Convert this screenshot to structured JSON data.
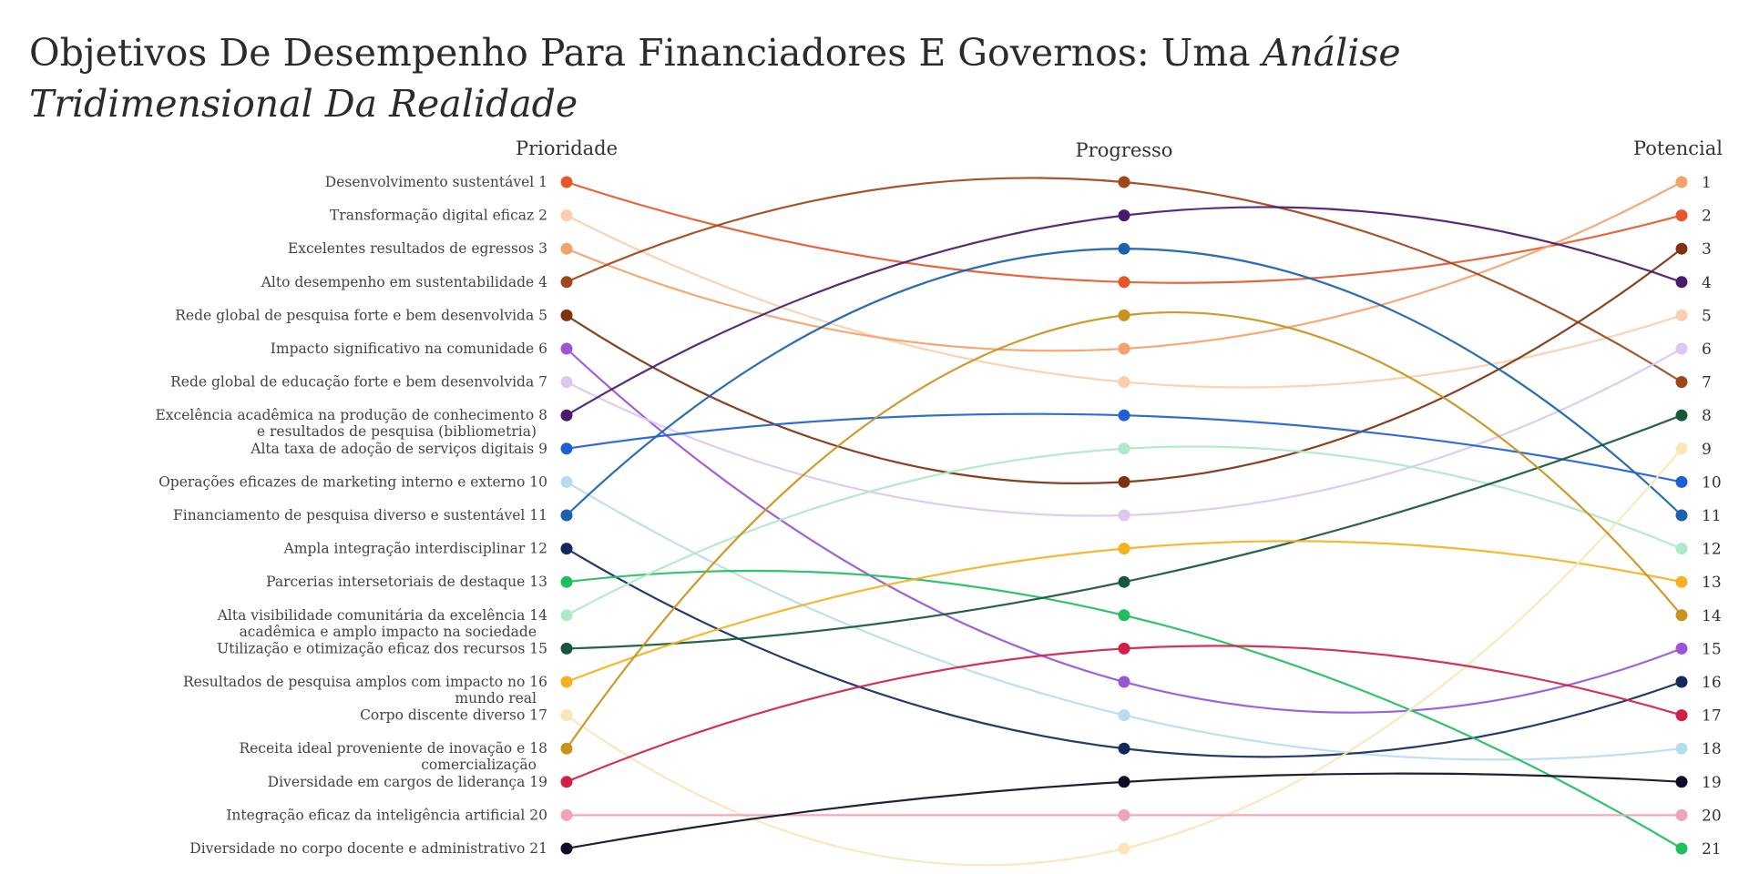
{
  "title_main": "Objetivos De Desempenho Para Financiadores E Governos: Uma ",
  "title_italic": "Análise Tridimensional Da Realidade",
  "chart_data": {
    "type": "line",
    "chart_style": "bump (rank) chart",
    "stages": [
      "Prioridade",
      "Progresso",
      "Potencial"
    ],
    "rank_range": [
      1,
      21
    ],
    "series": [
      {
        "name": "Desenvolvimento sustentável",
        "values": [
          1,
          4,
          2
        ],
        "color": "#e8572a"
      },
      {
        "name": "Transformação digital eficaz",
        "values": [
          2,
          7,
          5
        ],
        "color": "#f9cfae"
      },
      {
        "name": "Excelentes resultados de egressos",
        "values": [
          3,
          6,
          1
        ],
        "color": "#f4a26b"
      },
      {
        "name": "Alto desempenho em sustentabilidade",
        "values": [
          4,
          1,
          7
        ],
        "color": "#a0471a"
      },
      {
        "name": "Rede global de pesquisa forte e bem desenvolvida",
        "values": [
          5,
          10,
          3
        ],
        "color": "#7e3210"
      },
      {
        "name": "Impacto significativo na comunidade",
        "values": [
          6,
          16,
          15
        ],
        "color": "#9a55d4"
      },
      {
        "name": "Rede global de educação forte e bem desenvolvida",
        "values": [
          7,
          11,
          6
        ],
        "color": "#dcc8ef"
      },
      {
        "name": "Excelência acadêmica na produção de conhecimento e resultados de pesquisa (bibliometria)",
        "values": [
          8,
          2,
          4
        ],
        "color": "#4a1a6e"
      },
      {
        "name": "Alta taxa de adoção de serviços digitais",
        "values": [
          9,
          8,
          10
        ],
        "color": "#1f5fd6"
      },
      {
        "name": "Operações eficazes de marketing interno e externo",
        "values": [
          10,
          17,
          18
        ],
        "color": "#b7dcee"
      },
      {
        "name": "Financiamento de pesquisa diverso e sustentável",
        "values": [
          11,
          3,
          11
        ],
        "color": "#1a62ad"
      },
      {
        "name": "Ampla integração interdisciplinar",
        "values": [
          12,
          18,
          16
        ],
        "color": "#13295e"
      },
      {
        "name": "Parcerias intersetoriais de destaque",
        "values": [
          13,
          14,
          21
        ],
        "color": "#1fbf5f"
      },
      {
        "name": "Alta visibilidade comunitária da excelência acadêmica e amplo impacto na sociedade",
        "values": [
          14,
          9,
          12
        ],
        "color": "#aee9c8"
      },
      {
        "name": "Utilização e otimização eficaz dos recursos",
        "values": [
          15,
          13,
          8
        ],
        "color": "#17573a"
      },
      {
        "name": "Resultados de pesquisa amplos com impacto no mundo real",
        "values": [
          16,
          12,
          13
        ],
        "color": "#f4b21f"
      },
      {
        "name": "Corpo discente diverso",
        "values": [
          17,
          21,
          9
        ],
        "color": "#fbe6b8"
      },
      {
        "name": "Receita ideal proveniente de inovação e comercialização",
        "values": [
          18,
          5,
          14
        ],
        "color": "#c8931a"
      },
      {
        "name": "Diversidade em cargos de liderança",
        "values": [
          19,
          15,
          17
        ],
        "color": "#d11f45"
      },
      {
        "name": "Integração eficaz da inteligência artificial",
        "values": [
          20,
          20,
          20
        ],
        "color": "#f0a3b2"
      },
      {
        "name": "Diversidade no corpo docente e administrativo",
        "values": [
          21,
          19,
          19
        ],
        "color": "#0c0c26"
      }
    ]
  }
}
